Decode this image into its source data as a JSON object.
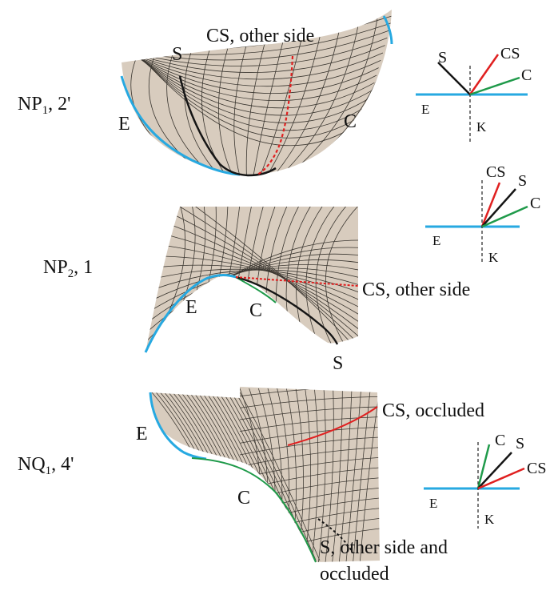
{
  "colors": {
    "surface": "#d8ccbe",
    "mesh": "#3a3630",
    "edge": "#27a9e1",
    "contour": "#1f9a4a",
    "cs_curve": "#e02020",
    "s_curve": "#151515",
    "k_axis": "#222222"
  },
  "panels": [
    {
      "label_main": "NP",
      "label_sub": "1",
      "label_rest": ", 2'",
      "surface_labels": {
        "E": "E",
        "S": "S",
        "C": "C",
        "cs": "CS, other side"
      },
      "legend": {
        "S": "S",
        "CS": "CS",
        "C": "C",
        "E": "E",
        "K": "K"
      }
    },
    {
      "label_main": "NP",
      "label_sub": "2",
      "label_rest": ", 1",
      "surface_labels": {
        "E": "E",
        "C": "C",
        "S": "S",
        "cs": "CS, other side"
      },
      "legend": {
        "CS": "CS",
        "S": "S",
        "C": "C",
        "E": "E",
        "K": "K"
      }
    },
    {
      "label_main": "NQ",
      "label_sub": "1",
      "label_rest": ", 4'",
      "surface_labels": {
        "E": "E",
        "C": "C",
        "cs": "CS, occluded",
        "s_line1": "S, other side and",
        "s_line2": "occluded"
      },
      "legend": {
        "C": "C",
        "S": "S",
        "CS": "CS",
        "E": "E",
        "K": "K"
      }
    }
  ]
}
